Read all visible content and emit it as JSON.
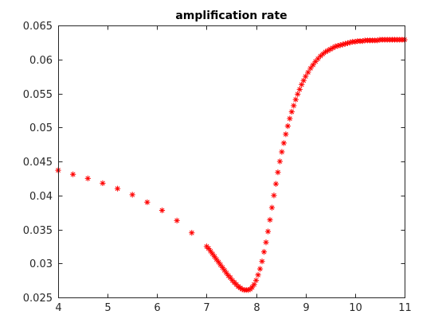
{
  "chart_data": {
    "type": "scatter",
    "title": "amplification rate",
    "xlabel": "",
    "ylabel": "",
    "xlim": [
      4,
      11
    ],
    "ylim": [
      0.025,
      0.065
    ],
    "xticks": [
      4,
      5,
      6,
      7,
      8,
      9,
      10,
      11
    ],
    "xtick_labels": [
      "4",
      "5",
      "6",
      "7",
      "8",
      "9",
      "10",
      "11"
    ],
    "yticks": [
      0.025,
      0.03,
      0.035,
      0.04,
      0.045,
      0.05,
      0.055,
      0.06,
      0.065
    ],
    "ytick_labels": [
      "0.025",
      "0.03",
      "0.035",
      "0.04",
      "0.045",
      "0.05",
      "0.055",
      "0.06",
      "0.065"
    ],
    "grid": false,
    "marker": "asterisk",
    "marker_color": "#ff0000",
    "axis_color": "#262626",
    "series": [
      {
        "x": [
          4.0,
          4.3,
          4.6,
          4.9,
          5.2,
          5.5,
          5.8,
          6.1,
          6.4,
          6.7,
          7.0,
          7.04,
          7.08,
          7.12,
          7.16,
          7.2,
          7.24,
          7.28,
          7.32,
          7.36,
          7.4,
          7.44,
          7.48,
          7.52,
          7.56,
          7.6,
          7.64,
          7.68,
          7.72,
          7.76,
          7.8,
          7.84,
          7.88,
          7.92,
          7.96,
          8.0,
          8.04,
          8.08,
          8.12,
          8.16,
          8.2,
          8.24,
          8.28,
          8.32,
          8.36,
          8.4,
          8.44,
          8.48,
          8.52,
          8.56,
          8.6,
          8.64,
          8.68,
          8.72,
          8.76,
          8.8,
          8.84,
          8.88,
          8.92,
          8.96,
          9.0,
          9.05,
          9.1,
          9.15,
          9.2,
          9.25,
          9.3,
          9.35,
          9.4,
          9.45,
          9.5,
          9.55,
          9.6,
          9.65,
          9.7,
          9.75,
          9.8,
          9.85,
          9.9,
          9.95,
          10.0,
          10.05,
          10.1,
          10.15,
          10.2,
          10.25,
          10.3,
          10.35,
          10.4,
          10.45,
          10.5,
          10.55,
          10.6,
          10.65,
          10.7,
          10.75,
          10.8,
          10.85,
          10.9,
          10.95,
          11.0
        ],
        "y": [
          0.0437,
          0.0431,
          0.0425,
          0.0418,
          0.041,
          0.0401,
          0.039,
          0.0378,
          0.0363,
          0.0345,
          0.0325,
          0.0322,
          0.0318,
          0.0314,
          0.031,
          0.0306,
          0.0302,
          0.0298,
          0.0294,
          0.029,
          0.0286,
          0.0282,
          0.0279,
          0.0275,
          0.0272,
          0.0269,
          0.0266,
          0.0264,
          0.0262,
          0.0261,
          0.0261,
          0.0261,
          0.0262,
          0.0265,
          0.0269,
          0.0275,
          0.0283,
          0.0292,
          0.0303,
          0.0317,
          0.0331,
          0.0347,
          0.0364,
          0.0382,
          0.04,
          0.0417,
          0.0434,
          0.045,
          0.0464,
          0.0477,
          0.049,
          0.0502,
          0.0513,
          0.0523,
          0.0532,
          0.0541,
          0.0549,
          0.0556,
          0.0563,
          0.0569,
          0.0575,
          0.0581,
          0.0587,
          0.0592,
          0.0597,
          0.0601,
          0.0605,
          0.0608,
          0.0611,
          0.0613,
          0.0615,
          0.0617,
          0.0619,
          0.062,
          0.0621,
          0.0622,
          0.0623,
          0.0624,
          0.0625,
          0.0626,
          0.0626,
          0.0627,
          0.0627,
          0.0627,
          0.0628,
          0.0628,
          0.0628,
          0.0628,
          0.0628,
          0.0628,
          0.0629,
          0.0629,
          0.0629,
          0.0629,
          0.0629,
          0.0629,
          0.0629,
          0.0629,
          0.0629,
          0.0629,
          0.0629
        ]
      }
    ]
  }
}
